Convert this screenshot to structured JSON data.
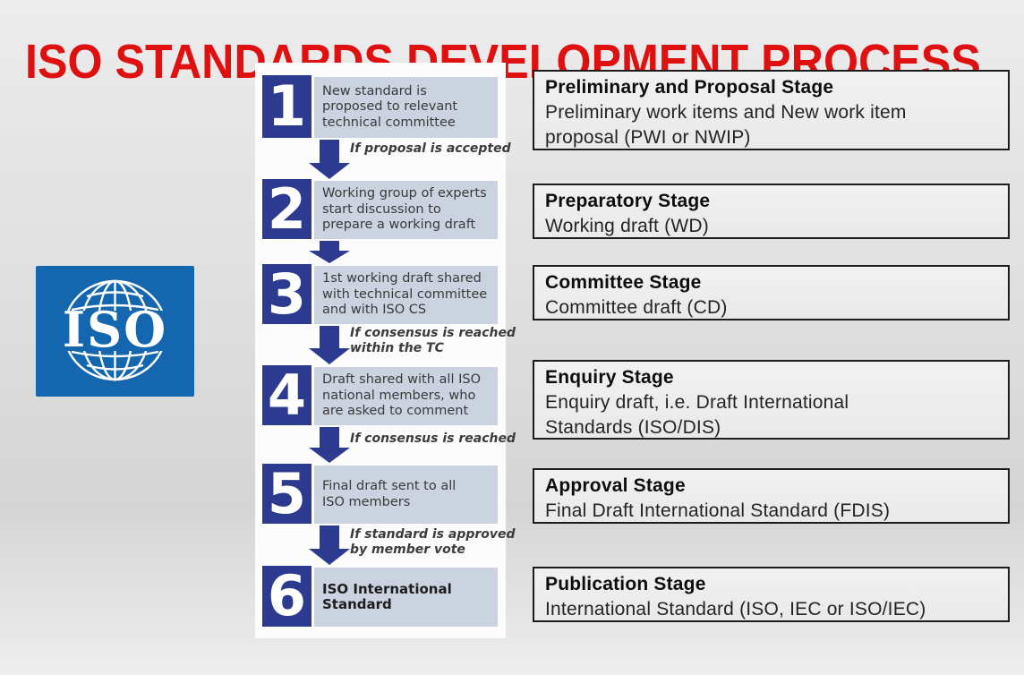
{
  "title": "ISO STANDARDS DEVELOPMENT PROCESS",
  "logo": {
    "text": "ISO"
  },
  "colors": {
    "title_red": "#de1010",
    "flow_navy": "#2c3a90",
    "step_box_bg": "#cbd3e1",
    "logo_blue": "#1467ae",
    "stage_border": "#1c1c1c"
  },
  "steps": [
    {
      "number": "1",
      "lines": [
        "New standard is",
        "proposed to relevant",
        "technical committee"
      ],
      "arrow_label_lines": [
        "If proposal is accepted"
      ]
    },
    {
      "number": "2",
      "lines": [
        "Working group of experts",
        "start discussion to",
        "prepare a working draft"
      ],
      "arrow_label_lines": []
    },
    {
      "number": "3",
      "lines": [
        "1st working draft shared",
        "with technical committee",
        "and with ISO CS"
      ],
      "arrow_label_lines": [
        "If consensus is reached",
        "within the TC"
      ]
    },
    {
      "number": "4",
      "lines": [
        "Draft shared with all ISO",
        "national members, who",
        "are asked to comment"
      ],
      "arrow_label_lines": [
        "If consensus is reached"
      ]
    },
    {
      "number": "5",
      "lines": [
        "Final draft sent to all",
        "ISO members"
      ],
      "arrow_label_lines": [
        "If standard is approved",
        "by member vote"
      ]
    },
    {
      "number": "6",
      "lines": [
        "ISO International",
        "Standard"
      ],
      "bold": true,
      "arrow_label_lines": []
    }
  ],
  "stages": [
    {
      "title": "Preliminary and Proposal Stage",
      "desc_lines": [
        "Preliminary work items and New work item",
        "proposal (PWI or NWIP)"
      ]
    },
    {
      "title": "Preparatory Stage",
      "desc_lines": [
        "Working draft (WD)"
      ]
    },
    {
      "title": "Committee Stage",
      "desc_lines": [
        "Committee draft (CD)"
      ]
    },
    {
      "title": "Enquiry Stage",
      "desc_lines": [
        "Enquiry draft, i.e. Draft International",
        "Standards (ISO/DIS)"
      ]
    },
    {
      "title": "Approval Stage",
      "desc_lines": [
        "Final Draft International Standard (FDIS)"
      ]
    },
    {
      "title": "Publication Stage",
      "desc_lines": [
        "International Standard (ISO, IEC or ISO/IEC)"
      ]
    }
  ]
}
